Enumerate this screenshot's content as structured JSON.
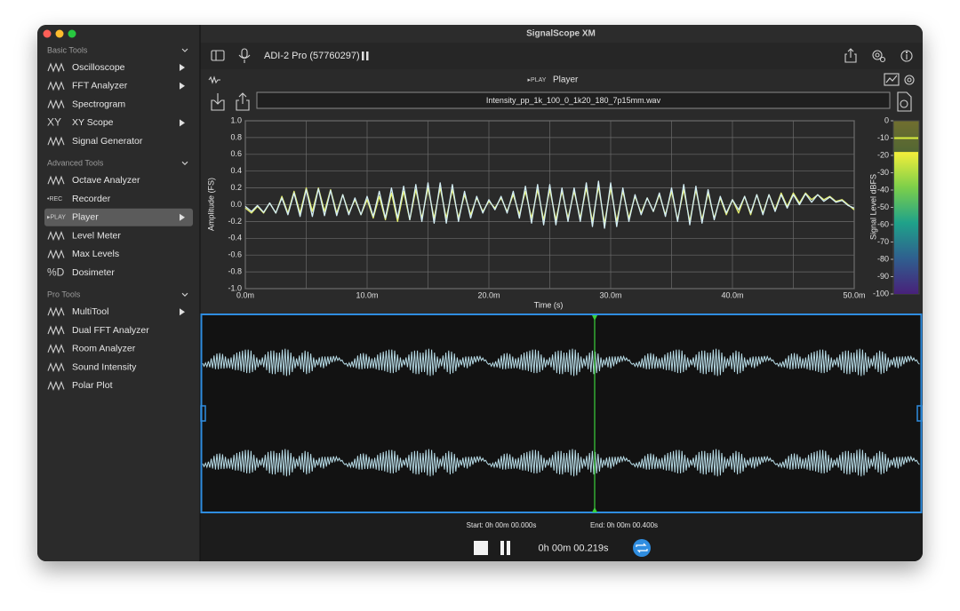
{
  "window": {
    "title": "SignalScope XM"
  },
  "toolbar": {
    "device": "ADI-2 Pro (57760297)"
  },
  "sidebar": {
    "sections": [
      {
        "title": "Basic Tools",
        "items": [
          {
            "label": "Oscilloscope",
            "submenu": true
          },
          {
            "label": "FFT Analyzer",
            "submenu": true
          },
          {
            "label": "Spectrogram"
          },
          {
            "label": "XY Scope",
            "icon": "XY",
            "submenu": true
          },
          {
            "label": "Signal Generator"
          }
        ]
      },
      {
        "title": "Advanced Tools",
        "items": [
          {
            "label": "Octave Analyzer"
          },
          {
            "label": "Recorder",
            "icon": "•REC"
          },
          {
            "label": "Player",
            "icon": "▸PLAY",
            "submenu": true,
            "selected": true
          },
          {
            "label": "Level Meter"
          },
          {
            "label": "Max Levels"
          },
          {
            "label": "Dosimeter",
            "icon": "%D"
          }
        ]
      },
      {
        "title": "Pro Tools",
        "items": [
          {
            "label": "MultiTool",
            "submenu": true
          },
          {
            "label": "Dual FFT Analyzer"
          },
          {
            "label": "Room Analyzer"
          },
          {
            "label": "Sound Intensity"
          },
          {
            "label": "Polar Plot"
          }
        ]
      }
    ]
  },
  "player": {
    "badge": "▸PLAY",
    "title": "Player",
    "file": "Intensity_pp_1k_100_0_1k20_180_7p15mm.wav"
  },
  "chart_data": {
    "type": "line",
    "xlabel": "Time (s)",
    "ylabel": "Amplitude (FS)",
    "x": [
      0,
      0.5,
      1,
      1.5,
      2,
      2.5,
      3,
      3.5,
      4,
      4.5,
      5,
      5.5,
      6,
      6.5,
      7,
      7.5,
      8,
      8.5,
      9,
      9.5,
      10,
      10.5,
      11,
      11.5,
      12,
      12.5,
      13,
      13.5,
      14,
      14.5,
      15,
      15.5,
      16,
      16.5,
      17,
      17.5,
      18,
      18.5,
      19,
      19.5,
      20,
      20.5,
      21,
      21.5,
      22,
      22.5,
      23,
      23.5,
      24,
      24.5,
      25,
      25.5,
      26,
      26.5,
      27,
      27.5,
      28,
      28.5,
      29,
      29.5,
      30,
      30.5,
      31,
      31.5,
      32,
      32.5,
      33,
      33.5,
      34,
      34.5,
      35,
      35.5,
      36,
      36.5,
      37,
      37.5,
      38,
      38.5,
      39,
      39.5,
      40,
      40.5,
      41,
      41.5,
      42,
      42.5,
      43,
      43.5,
      44,
      44.5,
      45,
      45.5,
      46,
      46.5,
      47,
      47.5,
      48,
      48.5,
      49,
      49.5,
      50
    ],
    "series": [
      {
        "color": "#e6ef6e",
        "values": [
          -0.04,
          -0.1,
          -0.02,
          -0.1,
          0.02,
          -0.1,
          0.1,
          -0.1,
          0.16,
          -0.1,
          0.2,
          -0.08,
          0.2,
          -0.08,
          0.18,
          -0.1,
          0.12,
          -0.1,
          0.06,
          -0.12,
          0.06,
          -0.16,
          0.1,
          -0.18,
          0.14,
          -0.2,
          0.16,
          -0.18,
          0.18,
          -0.16,
          0.2,
          -0.16,
          0.2,
          -0.16,
          0.18,
          -0.16,
          0.12,
          -0.12,
          0.08,
          -0.08,
          0.04,
          -0.04,
          0.08,
          -0.08,
          0.12,
          -0.12,
          0.16,
          -0.16,
          0.18,
          -0.18,
          0.18,
          -0.18,
          0.16,
          -0.16,
          0.16,
          -0.16,
          0.2,
          -0.2,
          0.22,
          -0.22,
          0.2,
          -0.2,
          0.16,
          -0.16,
          0.1,
          -0.1,
          0.08,
          -0.08,
          0.12,
          -0.12,
          0.16,
          -0.18,
          0.18,
          -0.2,
          0.18,
          -0.18,
          0.14,
          -0.16,
          0.08,
          -0.12,
          0.06,
          -0.1,
          0.1,
          -0.12,
          0.12,
          -0.1,
          0.12,
          -0.06,
          0.14,
          -0.02,
          0.14,
          0.02,
          0.14,
          0.06,
          0.12,
          0.06,
          0.1,
          0.04,
          0.06,
          0.0,
          -0.06
        ]
      },
      {
        "color": "#d4eef5",
        "values": [
          -0.02,
          -0.08,
          -0.01,
          -0.09,
          0.02,
          -0.1,
          0.08,
          -0.12,
          0.14,
          -0.14,
          0.18,
          -0.14,
          0.19,
          -0.13,
          0.17,
          -0.13,
          0.12,
          -0.12,
          0.08,
          -0.12,
          0.1,
          -0.14,
          0.16,
          -0.16,
          0.2,
          -0.16,
          0.22,
          -0.18,
          0.24,
          -0.2,
          0.26,
          -0.22,
          0.26,
          -0.22,
          0.24,
          -0.2,
          0.16,
          -0.16,
          0.1,
          -0.1,
          0.06,
          -0.06,
          0.1,
          -0.1,
          0.16,
          -0.16,
          0.22,
          -0.22,
          0.24,
          -0.24,
          0.24,
          -0.24,
          0.2,
          -0.2,
          0.2,
          -0.2,
          0.26,
          -0.26,
          0.28,
          -0.28,
          0.26,
          -0.26,
          0.2,
          -0.2,
          0.12,
          -0.12,
          0.08,
          -0.08,
          0.14,
          -0.14,
          0.2,
          -0.2,
          0.24,
          -0.24,
          0.22,
          -0.22,
          0.18,
          -0.18,
          0.1,
          -0.1,
          0.06,
          -0.06,
          0.1,
          -0.1,
          0.12,
          -0.12,
          0.12,
          -0.08,
          0.12,
          -0.04,
          0.12,
          0.0,
          0.13,
          0.03,
          0.12,
          0.04,
          0.09,
          0.03,
          0.05,
          -0.01,
          -0.04
        ]
      }
    ],
    "xlim": [
      0,
      50
    ],
    "xticks": [
      {
        "value": 0,
        "label": "0.0m"
      },
      {
        "value": 10,
        "label": "10.0m"
      },
      {
        "value": 20,
        "label": "20.0m"
      },
      {
        "value": 30,
        "label": "30.0m"
      },
      {
        "value": 40,
        "label": "40.0m"
      },
      {
        "value": 50,
        "label": "50.0m"
      }
    ],
    "ylim": [
      -1,
      1
    ],
    "yticks": [
      {
        "value": 1,
        "label": "1.0"
      },
      0.8,
      0.6,
      0.4,
      0.2,
      {
        "value": 0,
        "label": "0.0"
      },
      -0.2,
      -0.4,
      -0.6,
      -0.8,
      {
        "value": -1,
        "label": "-1.0"
      }
    ],
    "grid": true
  },
  "level_meter": {
    "label": "Signal Level dBFS",
    "ylim": [
      -100,
      0
    ],
    "yticks": [
      0,
      -10,
      -20,
      -30,
      -40,
      -50,
      -60,
      -70,
      -80,
      -90,
      -100
    ],
    "level": -18,
    "peak": -10
  },
  "transport": {
    "start": "Start: 0h 00m 00.000s",
    "end": "End: 0h 00m 00.400s",
    "time": "0h 00m 00.219s"
  }
}
